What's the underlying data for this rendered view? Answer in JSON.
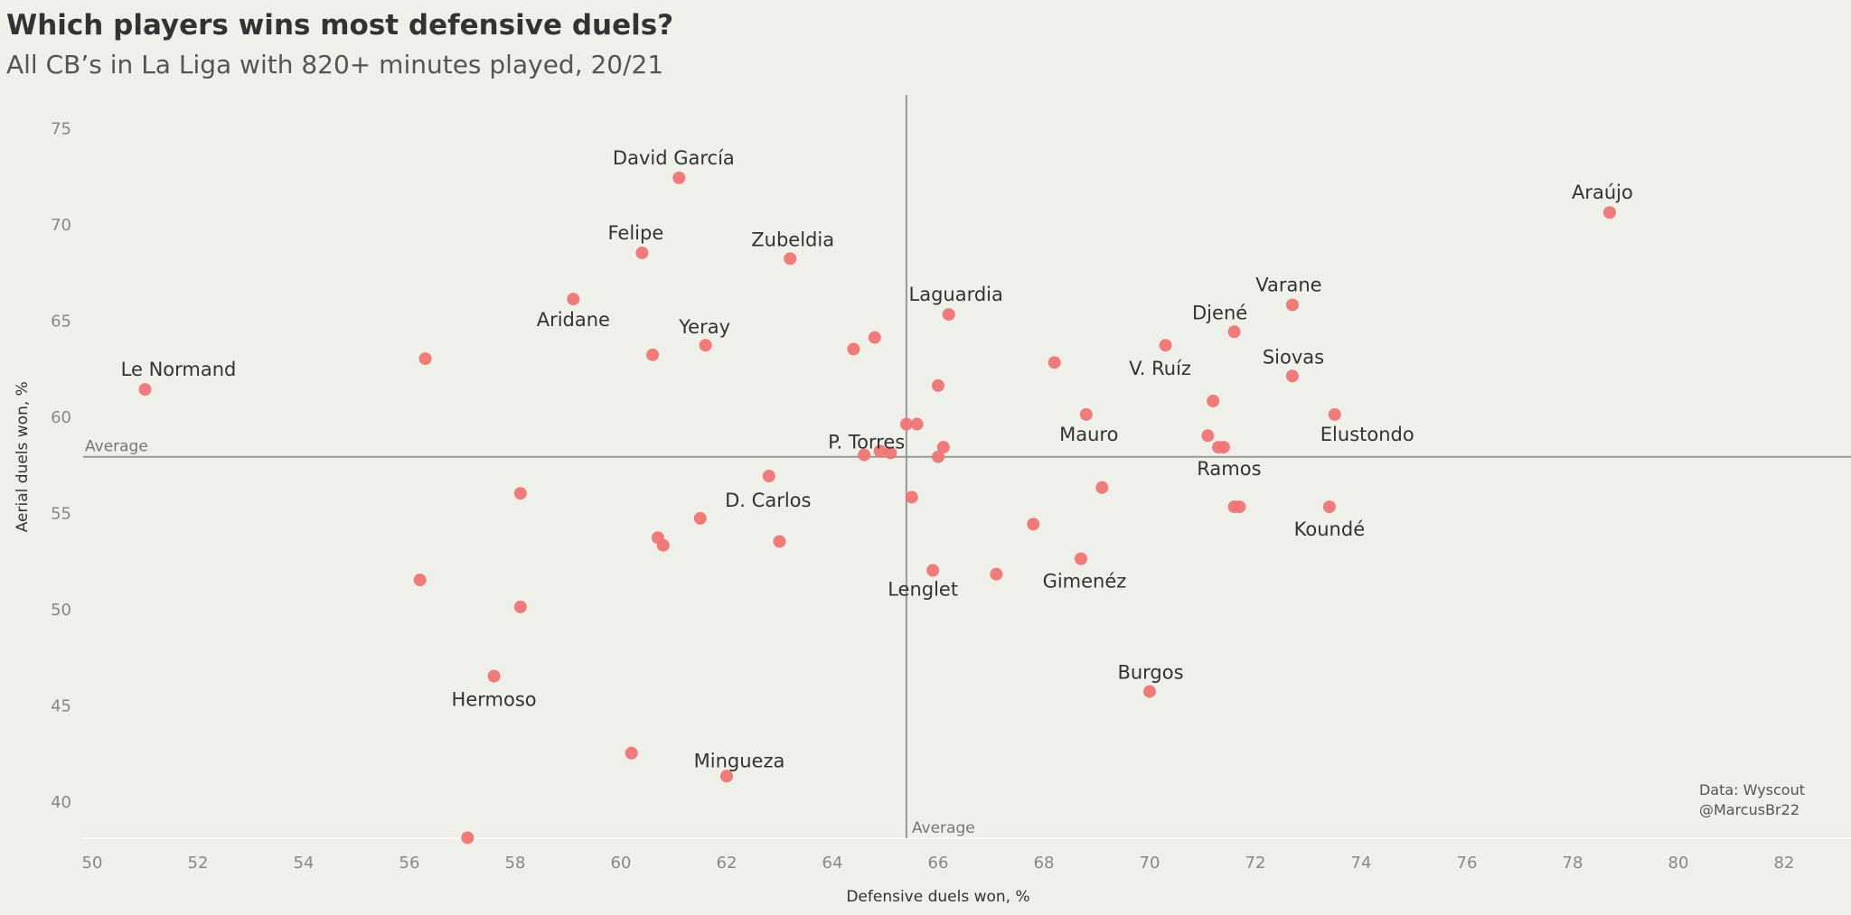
{
  "header": {
    "title": "Which players wins most defensive duels?",
    "subtitle": "All CB’s in La Liga with 820+ minutes played, 20/21"
  },
  "credits": {
    "source": "Data: Wyscout",
    "author": "@MarcusBr22"
  },
  "colors": {
    "point": "#ee7474",
    "background": "#f0f0ea",
    "average_line": "#999999"
  },
  "chart_data": {
    "type": "scatter",
    "xlabel": "Defensive duels won, %",
    "ylabel": "Aerial duels won, %",
    "xlim": [
      49.8,
      83.5
    ],
    "ylim": [
      38.2,
      77.0
    ],
    "xticks": [
      50,
      52,
      54,
      56,
      58,
      60,
      62,
      64,
      66,
      68,
      70,
      72,
      74,
      76,
      78,
      80,
      82
    ],
    "yticks": [
      40,
      45,
      50,
      55,
      60,
      65,
      70,
      75
    ],
    "grid": false,
    "average_x": 65.4,
    "average_y": 57.9,
    "average_label": "Average",
    "points": [
      {
        "x": 51.0,
        "y": 61.4,
        "label": "Le Normand"
      },
      {
        "x": 56.3,
        "y": 63.0,
        "label": ""
      },
      {
        "x": 56.2,
        "y": 51.5,
        "label": ""
      },
      {
        "x": 57.1,
        "y": 38.1,
        "label": ""
      },
      {
        "x": 57.6,
        "y": 46.5,
        "label": "Hermoso"
      },
      {
        "x": 58.1,
        "y": 56.0,
        "label": ""
      },
      {
        "x": 58.1,
        "y": 50.1,
        "label": ""
      },
      {
        "x": 59.1,
        "y": 66.1,
        "label": "Aridane"
      },
      {
        "x": 60.2,
        "y": 42.5,
        "label": ""
      },
      {
        "x": 60.4,
        "y": 68.5,
        "label": "Felipe"
      },
      {
        "x": 60.6,
        "y": 63.2,
        "label": ""
      },
      {
        "x": 60.7,
        "y": 53.7,
        "label": ""
      },
      {
        "x": 60.8,
        "y": 53.3,
        "label": ""
      },
      {
        "x": 61.1,
        "y": 72.4,
        "label": "David García"
      },
      {
        "x": 61.5,
        "y": 54.7,
        "label": ""
      },
      {
        "x": 61.6,
        "y": 63.7,
        "label": "Yeray"
      },
      {
        "x": 62.0,
        "y": 41.3,
        "label": "Mingueza"
      },
      {
        "x": 62.8,
        "y": 56.9,
        "label": "D. Carlos"
      },
      {
        "x": 63.0,
        "y": 53.5,
        "label": ""
      },
      {
        "x": 63.2,
        "y": 68.2,
        "label": "Zubeldia"
      },
      {
        "x": 64.4,
        "y": 63.5,
        "label": ""
      },
      {
        "x": 64.6,
        "y": 58.0,
        "label": ""
      },
      {
        "x": 64.8,
        "y": 64.1,
        "label": ""
      },
      {
        "x": 64.9,
        "y": 58.2,
        "label": "P. Torres"
      },
      {
        "x": 65.1,
        "y": 58.1,
        "label": ""
      },
      {
        "x": 65.4,
        "y": 59.6,
        "label": ""
      },
      {
        "x": 65.5,
        "y": 55.8,
        "label": ""
      },
      {
        "x": 65.6,
        "y": 59.6,
        "label": ""
      },
      {
        "x": 65.9,
        "y": 52.0,
        "label": "Lenglet"
      },
      {
        "x": 66.0,
        "y": 57.9,
        "label": ""
      },
      {
        "x": 66.0,
        "y": 61.6,
        "label": ""
      },
      {
        "x": 66.1,
        "y": 58.4,
        "label": ""
      },
      {
        "x": 66.2,
        "y": 65.3,
        "label": "Laguardia"
      },
      {
        "x": 67.1,
        "y": 51.8,
        "label": ""
      },
      {
        "x": 67.8,
        "y": 54.4,
        "label": ""
      },
      {
        "x": 68.2,
        "y": 62.8,
        "label": ""
      },
      {
        "x": 68.7,
        "y": 52.6,
        "label": "Gimenéz"
      },
      {
        "x": 68.8,
        "y": 60.1,
        "label": "Mauro"
      },
      {
        "x": 69.1,
        "y": 56.3,
        "label": ""
      },
      {
        "x": 70.0,
        "y": 45.7,
        "label": "Burgos"
      },
      {
        "x": 70.3,
        "y": 63.7,
        "label": "V. Ruíz"
      },
      {
        "x": 71.1,
        "y": 59.0,
        "label": ""
      },
      {
        "x": 71.2,
        "y": 60.8,
        "label": ""
      },
      {
        "x": 71.3,
        "y": 58.4,
        "label": ""
      },
      {
        "x": 71.4,
        "y": 58.4,
        "label": "Ramos"
      },
      {
        "x": 71.6,
        "y": 55.3,
        "label": ""
      },
      {
        "x": 71.6,
        "y": 64.4,
        "label": "Djené"
      },
      {
        "x": 71.7,
        "y": 55.3,
        "label": ""
      },
      {
        "x": 72.7,
        "y": 65.8,
        "label": "Varane"
      },
      {
        "x": 72.7,
        "y": 62.1,
        "label": "Siovas"
      },
      {
        "x": 73.4,
        "y": 55.3,
        "label": "Koundé"
      },
      {
        "x": 73.5,
        "y": 60.1,
        "label": "Elustondo"
      },
      {
        "x": 78.7,
        "y": 70.6,
        "label": "Araújo"
      }
    ]
  }
}
